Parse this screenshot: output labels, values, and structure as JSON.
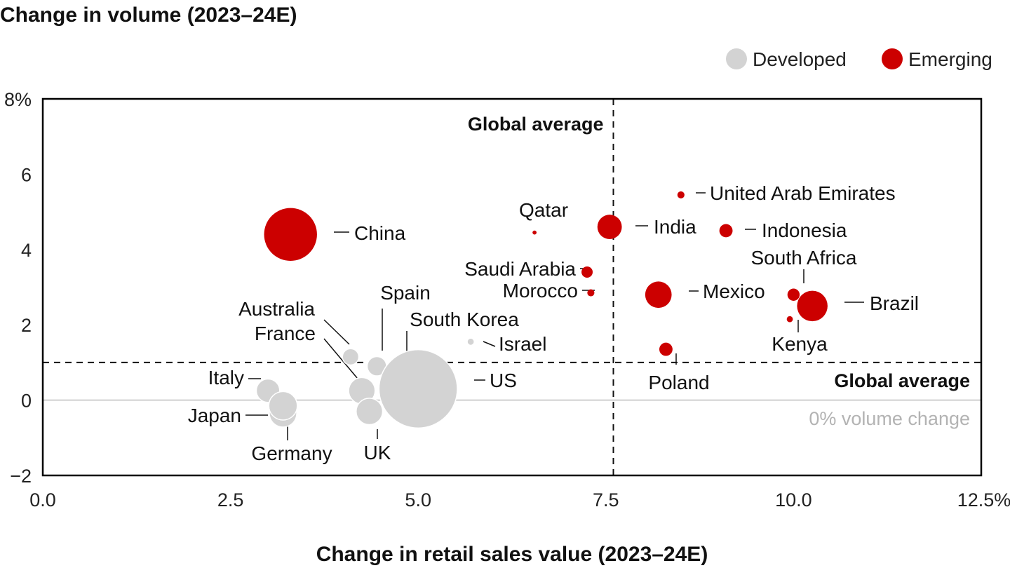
{
  "chart_data": {
    "type": "scatter",
    "title": "Change in volume (2023–24E)",
    "xlabel": "Change in retail sales value (2023–24E)",
    "ylabel": "Change in volume (2023–24E)",
    "xlim": [
      0,
      12.5
    ],
    "ylim": [
      -2,
      8
    ],
    "x_ticks": [
      {
        "value": 0,
        "label": "0.0"
      },
      {
        "value": 2.5,
        "label": "2.5"
      },
      {
        "value": 5,
        "label": "5.0"
      },
      {
        "value": 7.5,
        "label": "7.5"
      },
      {
        "value": 10,
        "label": "10.0"
      },
      {
        "value": 12.5,
        "label": "12.5%"
      }
    ],
    "y_ticks": [
      {
        "value": 8,
        "label": "8%"
      },
      {
        "value": 6,
        "label": "6"
      },
      {
        "value": 4,
        "label": "4"
      },
      {
        "value": 2,
        "label": "2"
      },
      {
        "value": 0,
        "label": "0"
      },
      {
        "value": -2,
        "label": "−2"
      }
    ],
    "legend": {
      "placement": "top-right",
      "entries": [
        {
          "label": "Developed",
          "color": "#d3d3d3"
        },
        {
          "label": "Emerging",
          "color": "#cc0000"
        }
      ]
    },
    "reference_lines": {
      "global_average_x": 7.6,
      "global_average_y": 1.0,
      "global_average_label_x": "Global average",
      "global_average_label_y": "Global average",
      "zero_line_y": 0,
      "zero_label": "0% volume change"
    },
    "colors": {
      "Developed": "#d3d3d3",
      "Emerging": "#cc0000",
      "developed_outline": "#ffffff"
    },
    "series": [
      {
        "name": "Emerging",
        "points": [
          {
            "label": "China",
            "x": 3.3,
            "y": 4.4,
            "size": 52
          },
          {
            "label": "Qatar",
            "x": 6.55,
            "y": 4.45,
            "size": 4
          },
          {
            "label": "India",
            "x": 7.55,
            "y": 4.6,
            "size": 24
          },
          {
            "label": "United Arab Emirates",
            "x": 8.5,
            "y": 5.45,
            "size": 7
          },
          {
            "label": "Indonesia",
            "x": 9.1,
            "y": 4.5,
            "size": 13
          },
          {
            "label": "Saudi Arabia",
            "x": 7.25,
            "y": 3.4,
            "size": 11
          },
          {
            "label": "Morocco",
            "x": 7.3,
            "y": 2.85,
            "size": 7
          },
          {
            "label": "Mexico",
            "x": 8.2,
            "y": 2.8,
            "size": 26
          },
          {
            "label": "South Africa",
            "x": 10.0,
            "y": 2.8,
            "size": 12
          },
          {
            "label": "Brazil",
            "x": 10.25,
            "y": 2.5,
            "size": 30
          },
          {
            "label": "Kenya",
            "x": 9.95,
            "y": 2.15,
            "size": 6
          },
          {
            "label": "Poland",
            "x": 8.3,
            "y": 1.35,
            "size": 13
          }
        ]
      },
      {
        "name": "Developed",
        "points": [
          {
            "label": "Australia",
            "x": 4.1,
            "y": 1.15,
            "size": 16
          },
          {
            "label": "Spain",
            "x": 4.45,
            "y": 0.9,
            "size": 19
          },
          {
            "label": "South Korea",
            "x": 4.75,
            "y": 0.8,
            "size": 17
          },
          {
            "label": "Israel",
            "x": 5.7,
            "y": 1.55,
            "size": 7
          },
          {
            "label": "US",
            "x": 5.0,
            "y": 0.3,
            "size": 77
          },
          {
            "label": "France",
            "x": 4.25,
            "y": 0.25,
            "size": 26
          },
          {
            "label": "UK",
            "x": 4.35,
            "y": -0.3,
            "size": 26
          },
          {
            "label": "Italy",
            "x": 3.0,
            "y": 0.25,
            "size": 23
          },
          {
            "label": "Japan",
            "x": 3.2,
            "y": -0.35,
            "size": 27
          },
          {
            "label": "Germany",
            "x": 3.2,
            "y": -0.15,
            "size": 28
          }
        ]
      }
    ]
  }
}
